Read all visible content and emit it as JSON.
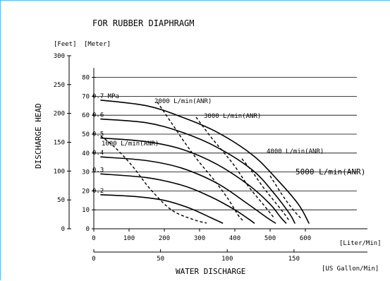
{
  "chart_data": {
    "type": "line",
    "title": "FOR RUBBER DIAPHRAGM",
    "ylabel": "DISCHARGE HEAD",
    "xlabel": "WATER DISCHARGE",
    "y_unit_feet": "[Feet]",
    "y_unit_meter": "[Meter]",
    "x_unit_liter": "[Liter/Min]",
    "x_unit_gallon": "[US Gallon/Min]",
    "meter_ticks": [
      0,
      10,
      20,
      30,
      40,
      50,
      60,
      70,
      80
    ],
    "feet_ticks": [
      0,
      50,
      100,
      150,
      200,
      250,
      300
    ],
    "liter_ticks": [
      0,
      100,
      200,
      300,
      400,
      500,
      600
    ],
    "gallon_ticks": [
      0,
      50,
      100,
      150
    ],
    "xlim": [
      0,
      700
    ],
    "ylim": [
      0,
      85
    ],
    "grid": true,
    "pressure_curves": [
      {
        "name": "0.7 MPa",
        "points": [
          [
            20,
            68
          ],
          [
            150,
            65
          ],
          [
            250,
            59
          ],
          [
            350,
            51
          ],
          [
            450,
            39
          ],
          [
            520,
            26
          ],
          [
            580,
            13
          ],
          [
            610,
            3
          ]
        ]
      },
      {
        "name": "0.6",
        "points": [
          [
            20,
            58
          ],
          [
            150,
            56
          ],
          [
            250,
            51
          ],
          [
            350,
            43
          ],
          [
            450,
            31
          ],
          [
            510,
            19
          ],
          [
            555,
            8
          ],
          [
            570,
            3
          ]
        ]
      },
      {
        "name": "0.5",
        "points": [
          [
            20,
            48
          ],
          [
            150,
            46
          ],
          [
            250,
            42
          ],
          [
            350,
            34
          ],
          [
            440,
            23
          ],
          [
            500,
            13
          ],
          [
            530,
            6
          ],
          [
            545,
            3
          ]
        ]
      },
      {
        "name": "0.4",
        "points": [
          [
            20,
            38
          ],
          [
            150,
            36
          ],
          [
            250,
            32
          ],
          [
            350,
            24
          ],
          [
            430,
            14
          ],
          [
            490,
            6
          ],
          [
            515,
            3
          ]
        ]
      },
      {
        "name": "0.3",
        "points": [
          [
            20,
            29
          ],
          [
            150,
            27
          ],
          [
            250,
            23
          ],
          [
            330,
            17
          ],
          [
            400,
            10
          ],
          [
            440,
            5
          ],
          [
            455,
            3
          ]
        ]
      },
      {
        "name": "0.2",
        "points": [
          [
            20,
            18
          ],
          [
            120,
            17
          ],
          [
            200,
            15
          ],
          [
            270,
            11
          ],
          [
            330,
            6
          ],
          [
            365,
            3
          ]
        ]
      }
    ],
    "air_curves": [
      {
        "name": "1000 L/min(ANR)",
        "points": [
          [
            20,
            49
          ],
          [
            60,
            43
          ],
          [
            110,
            33
          ],
          [
            160,
            21
          ],
          [
            220,
            10
          ],
          [
            280,
            5
          ],
          [
            320,
            3
          ]
        ]
      },
      {
        "name": "2000 L/min(ANR)",
        "points": [
          [
            180,
            67
          ],
          [
            220,
            56
          ],
          [
            260,
            45
          ],
          [
            300,
            35
          ],
          [
            340,
            26
          ],
          [
            380,
            16
          ],
          [
            410,
            7
          ],
          [
            425,
            4
          ]
        ]
      },
      {
        "name": "3000 L/min(ANR)",
        "points": [
          [
            290,
            59
          ],
          [
            330,
            49
          ],
          [
            370,
            40
          ],
          [
            400,
            33
          ],
          [
            440,
            22
          ],
          [
            480,
            13
          ],
          [
            510,
            6
          ]
        ]
      },
      {
        "name": "4000 L/min(ANR)",
        "points": [
          [
            420,
            37
          ],
          [
            450,
            30
          ],
          [
            480,
            22
          ],
          [
            510,
            15
          ],
          [
            540,
            8
          ],
          [
            555,
            4
          ]
        ]
      },
      {
        "name": "5000 L/min(ANR)",
        "points": [
          [
            500,
            28
          ],
          [
            520,
            22
          ],
          [
            545,
            15
          ],
          [
            570,
            9
          ],
          [
            590,
            5
          ]
        ]
      }
    ]
  }
}
